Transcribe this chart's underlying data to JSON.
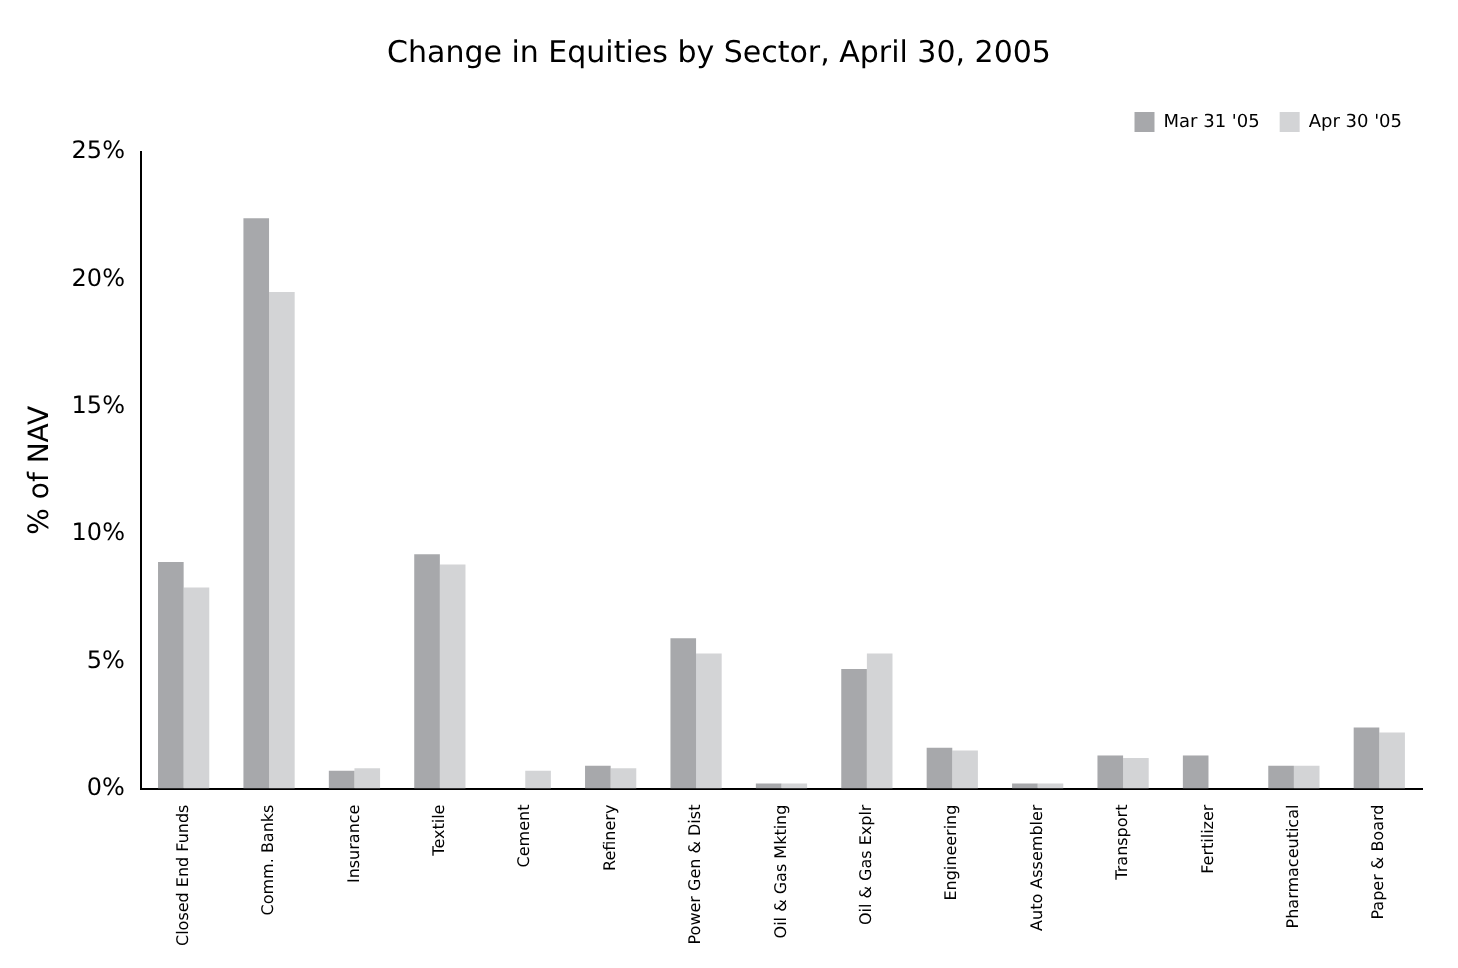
{
  "chart_data": {
    "type": "bar",
    "title": "Change in Equities by Sector, April 30, 2005",
    "ylabel": "% of NAV",
    "categories": [
      "Closed End Funds",
      "Comm. Banks",
      "Insurance",
      "Textile",
      "Cement",
      "Refinery",
      "Power Gen & Dist",
      "Oil & Gas Mkting",
      "Oil & Gas Explr",
      "Engineering",
      "Auto Assembler",
      "Transport",
      "Fertilizer",
      "Pharmaceutical",
      "Paper & Board"
    ],
    "series": [
      {
        "name": "Mar 31 '05",
        "color": "#a7a8ab",
        "values": [
          8.9,
          22.4,
          0.7,
          9.2,
          0,
          0.9,
          5.9,
          0.2,
          4.7,
          1.6,
          0.2,
          1.3,
          1.3,
          0.9,
          2.4
        ]
      },
      {
        "name": "Apr 30 '05",
        "color": "#d3d4d6",
        "values": [
          7.9,
          19.5,
          0.8,
          8.8,
          0.7,
          0.8,
          5.3,
          0.2,
          5.3,
          1.5,
          0.2,
          1.2,
          0,
          0.9,
          2.2
        ]
      }
    ],
    "ylim": [
      0,
      25
    ],
    "yticks": [
      {
        "value": 0,
        "label": "0%"
      },
      {
        "value": 5,
        "label": "5%"
      },
      {
        "value": 10,
        "label": "10%"
      },
      {
        "value": 15,
        "label": "15%"
      },
      {
        "value": 20,
        "label": "20%"
      },
      {
        "value": 25,
        "label": "25%"
      }
    ],
    "grid": false,
    "legend": "top right"
  }
}
